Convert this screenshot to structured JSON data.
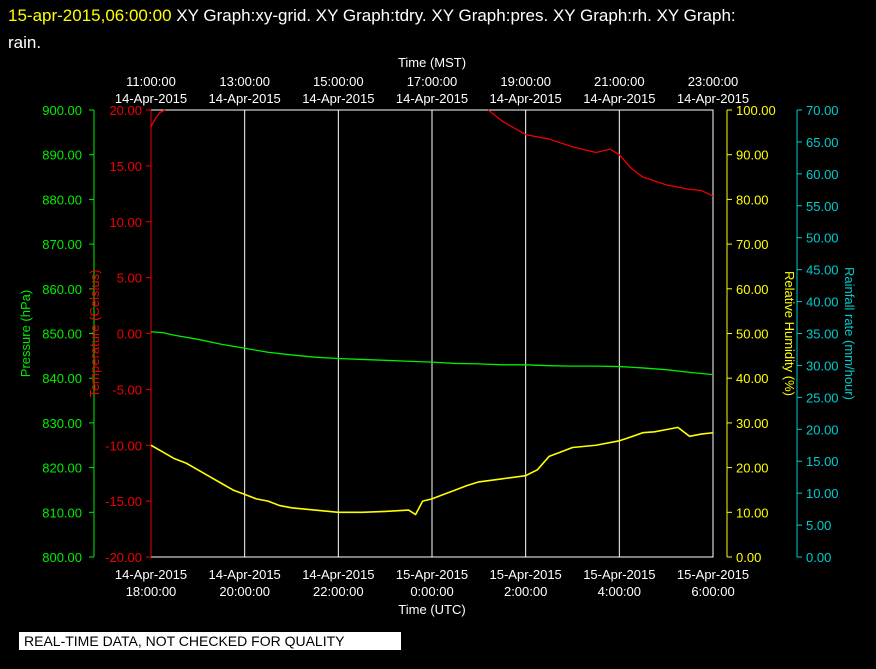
{
  "header": {
    "timestamp": "15-apr-2015,06:00:00",
    "titles": "XY Graph:xy-grid.  XY Graph:tdry.  XY Graph:pres.  XY Graph:rh.  XY Graph:",
    "titles_line2": "rain."
  },
  "quality_note": "REAL-TIME DATA, NOT CHECKED FOR QUALITY",
  "colors": {
    "background": "#000000",
    "grid": "#ffffff",
    "pressure": "#00ee00",
    "temperature": "#ee0000",
    "humidity": "#ffff00",
    "rainfall": "#00cccc"
  },
  "chart_data": {
    "type": "line",
    "grid": true,
    "x_top": {
      "label": "Time (MST)",
      "ticks": [
        {
          "time": "11:00:00",
          "date": "14-Apr-2015"
        },
        {
          "time": "13:00:00",
          "date": "14-Apr-2015"
        },
        {
          "time": "15:00:00",
          "date": "14-Apr-2015"
        },
        {
          "time": "17:00:00",
          "date": "14-Apr-2015"
        },
        {
          "time": "19:00:00",
          "date": "14-Apr-2015"
        },
        {
          "time": "21:00:00",
          "date": "14-Apr-2015"
        },
        {
          "time": "23:00:00",
          "date": "14-Apr-2015"
        }
      ]
    },
    "x_bottom": {
      "label": "Time (UTC)",
      "range": [
        "14-Apr-2015 18:00:00",
        "15-Apr-2015 06:00:00"
      ],
      "ticks": [
        {
          "date": "14-Apr-2015",
          "time": "18:00:00"
        },
        {
          "date": "14-Apr-2015",
          "time": "20:00:00"
        },
        {
          "date": "14-Apr-2015",
          "time": "22:00:00"
        },
        {
          "date": "15-Apr-2015",
          "time": "0:00:00"
        },
        {
          "date": "15-Apr-2015",
          "time": "2:00:00"
        },
        {
          "date": "15-Apr-2015",
          "time": "4:00:00"
        },
        {
          "date": "15-Apr-2015",
          "time": "6:00:00"
        }
      ]
    },
    "axes": {
      "pressure": {
        "label": "Pressure (hPa)",
        "ylim": [
          800,
          900
        ],
        "ticks": [
          "900.00",
          "890.00",
          "880.00",
          "870.00",
          "860.00",
          "850.00",
          "840.00",
          "830.00",
          "820.00",
          "810.00",
          "800.00"
        ]
      },
      "temperature": {
        "label": "Temperature (Celsius)",
        "ylim": [
          -20,
          20
        ],
        "ticks": [
          "20.00",
          "15.00",
          "10.00",
          "5.00",
          "0.00",
          "-5.00",
          "-10.00",
          "-15.00",
          "-20.00"
        ]
      },
      "humidity": {
        "label": "Relative Humidity (%)",
        "ylim": [
          0,
          100
        ],
        "ticks": [
          "100.00",
          "90.00",
          "80.00",
          "70.00",
          "60.00",
          "50.00",
          "40.00",
          "30.00",
          "20.00",
          "10.00",
          "0.00"
        ]
      },
      "rainfall": {
        "label": "Rainfall rate (mm/hour)",
        "ylim": [
          0,
          70
        ],
        "ticks": [
          "70.00",
          "65.00",
          "60.00",
          "55.00",
          "50.00",
          "45.00",
          "40.00",
          "35.00",
          "30.00",
          "25.00",
          "20.00",
          "15.00",
          "10.00",
          "5.00",
          "0.00"
        ]
      }
    },
    "series": [
      {
        "axis": "pressure",
        "points": [
          [
            0,
            850.4
          ],
          [
            0.5,
            850.2
          ],
          [
            1,
            849.6
          ],
          [
            2,
            848.7
          ],
          [
            3,
            847.6
          ],
          [
            4,
            846.7
          ],
          [
            5,
            845.8
          ],
          [
            6,
            845.2
          ],
          [
            7,
            844.7
          ],
          [
            8,
            844.4
          ],
          [
            9,
            844.2
          ],
          [
            10,
            844.0
          ],
          [
            11,
            843.8
          ],
          [
            12,
            843.6
          ],
          [
            13,
            843.3
          ],
          [
            14,
            843.2
          ],
          [
            15,
            843.0
          ],
          [
            16,
            843.0
          ],
          [
            17,
            842.8
          ],
          [
            18,
            842.7
          ],
          [
            19,
            842.7
          ],
          [
            20,
            842.6
          ],
          [
            21,
            842.3
          ],
          [
            22,
            841.9
          ],
          [
            23,
            841.3
          ],
          [
            24,
            840.8
          ]
        ]
      },
      {
        "axis": "temperature",
        "points": [
          [
            0,
            18.5
          ],
          [
            0.2,
            19.3
          ],
          [
            0.4,
            19.8
          ],
          [
            0.6,
            20.0
          ],
          [
            14.4,
            20.0
          ],
          [
            15,
            19.0
          ],
          [
            16,
            17.8
          ],
          [
            17,
            17.4
          ],
          [
            18,
            16.7
          ],
          [
            19,
            16.2
          ],
          [
            19.6,
            16.5
          ],
          [
            20,
            16.0
          ],
          [
            20.5,
            14.8
          ],
          [
            21,
            14.0
          ],
          [
            22,
            13.3
          ],
          [
            23,
            12.9
          ],
          [
            23.5,
            12.8
          ],
          [
            24,
            12.3
          ]
        ]
      },
      {
        "axis": "humidity",
        "points": [
          [
            0,
            25.0
          ],
          [
            0.5,
            23.5
          ],
          [
            1,
            22.0
          ],
          [
            1.5,
            21.0
          ],
          [
            2,
            19.5
          ],
          [
            2.5,
            18.0
          ],
          [
            3,
            16.5
          ],
          [
            3.5,
            15.0
          ],
          [
            4,
            14.0
          ],
          [
            4.5,
            13.0
          ],
          [
            5,
            12.5
          ],
          [
            5.5,
            11.5
          ],
          [
            6,
            11.0
          ],
          [
            7,
            10.5
          ],
          [
            8,
            10.0
          ],
          [
            9,
            10.0
          ],
          [
            10,
            10.2
          ],
          [
            11,
            10.5
          ],
          [
            11.3,
            9.5
          ],
          [
            11.6,
            12.5
          ],
          [
            12,
            13.0
          ],
          [
            12.5,
            14.0
          ],
          [
            13,
            15.0
          ],
          [
            13.5,
            16.0
          ],
          [
            14,
            16.8
          ],
          [
            15,
            17.5
          ],
          [
            16,
            18.2
          ],
          [
            16.5,
            19.5
          ],
          [
            17,
            22.5
          ],
          [
            17.5,
            23.5
          ],
          [
            18,
            24.5
          ],
          [
            19,
            25.0
          ],
          [
            20,
            26.0
          ],
          [
            20.3,
            26.5
          ],
          [
            21,
            27.8
          ],
          [
            21.5,
            28.0
          ],
          [
            22,
            28.5
          ],
          [
            22.5,
            29.0
          ],
          [
            23,
            27.0
          ],
          [
            23.5,
            27.5
          ],
          [
            24,
            27.8
          ]
        ]
      }
    ]
  }
}
